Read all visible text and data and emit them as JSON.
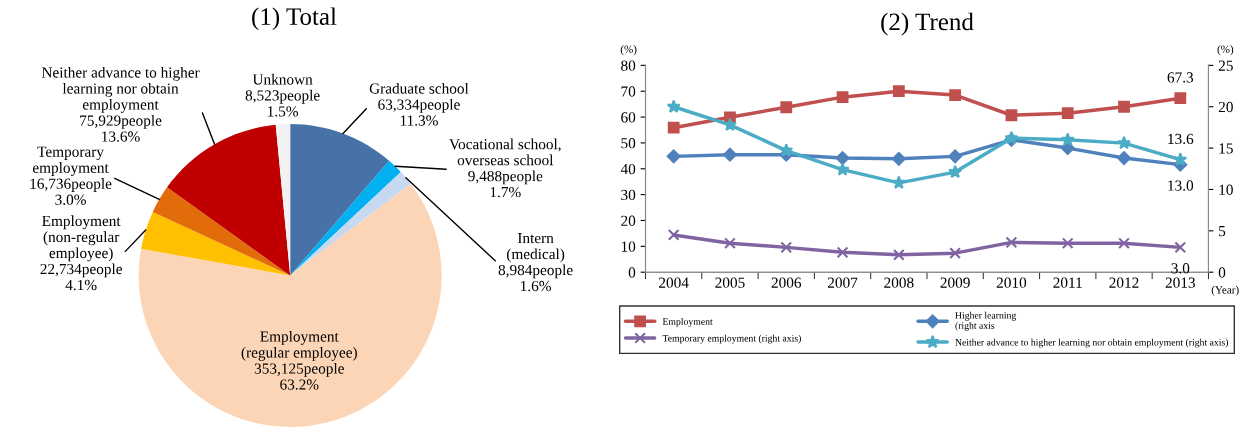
{
  "chart_data": [
    {
      "type": "pie",
      "title": "(1) Total",
      "categories": [
        "Graduate school",
        "Vocational school,\noverseas school",
        "Intern\n(medical)",
        "Employment\n(regular employee)",
        "Employment\n(non-regular\nemployee)",
        "Temporary\nemployment",
        "Neither advance to higher\nlearning nor obtain\nemployment",
        "Unknown"
      ],
      "values": [
        63334,
        9488,
        8984,
        353125,
        22734,
        16736,
        75929,
        8523
      ],
      "value_labels": [
        "63,334people\n11.3%",
        "9,488people\n1.7%",
        "8,984people\n1.6%",
        "353,125people\n63.2%",
        "22,734people\n4.1%",
        "16,736people\n3.0%",
        "75,929people\n13.6%",
        "8,523people\n1.5%"
      ],
      "colors": [
        "#4672a8",
        "#00b0f0",
        "#c6d9f0",
        "#fbd5b5",
        "#ffc000",
        "#e26b0a",
        "#c00000",
        "#f2f2f2"
      ]
    },
    {
      "type": "line",
      "title": "(2) Trend",
      "xlabel": "(Year)",
      "ylabel": "(%)",
      "y2label": "(%)",
      "categories": [
        "2004",
        "2005",
        "2006",
        "2007",
        "2008",
        "2009",
        "2010",
        "2011",
        "2012",
        "2013"
      ],
      "ylim": [
        0,
        80
      ],
      "yticks": [
        0,
        10,
        20,
        30,
        40,
        50,
        60,
        70,
        80
      ],
      "y2lim": [
        0,
        25
      ],
      "y2ticks": [
        0,
        5,
        10,
        15,
        20,
        25
      ],
      "legend": "bottom",
      "grid": false,
      "series": [
        {
          "name": "Employment",
          "color": "#c0504d",
          "marker": "square",
          "values": [
            55.9,
            59.9,
            63.8,
            67.7,
            70.0,
            68.5,
            60.7,
            61.5,
            64.0,
            67.3
          ],
          "value_labels": [
            null,
            null,
            null,
            null,
            null,
            null,
            null,
            null,
            null,
            "67.3"
          ]
        },
        {
          "name": "Higher learning\n(right axis",
          "color": "#4f81bd",
          "marker": "diamond",
          "axis": "y2",
          "values": [
            14.0,
            14.2,
            14.2,
            13.8,
            13.7,
            14.0,
            16.0,
            15.0,
            13.8,
            13.0
          ],
          "value_labels": [
            null,
            null,
            null,
            null,
            null,
            null,
            null,
            null,
            null,
            "13.0"
          ]
        },
        {
          "name": "Temporary employment (right axis)",
          "color": "#8064a2",
          "marker": "cross",
          "axis": "y2",
          "values": [
            4.5,
            3.5,
            3.0,
            2.4,
            2.1,
            2.3,
            3.6,
            3.5,
            3.5,
            3.0
          ],
          "value_labels": [
            null,
            null,
            null,
            null,
            null,
            null,
            null,
            null,
            null,
            "3.0"
          ]
        },
        {
          "name": "Neither advance to higher learning nor obtain employment (right axis)",
          "color": "#4bacc6",
          "marker": "star",
          "axis": "y2",
          "values": [
            20.0,
            17.8,
            14.7,
            12.4,
            10.8,
            12.1,
            16.2,
            16.0,
            15.6,
            13.6
          ],
          "value_labels": [
            null,
            null,
            null,
            null,
            null,
            null,
            null,
            null,
            null,
            "13.6"
          ]
        }
      ]
    }
  ]
}
